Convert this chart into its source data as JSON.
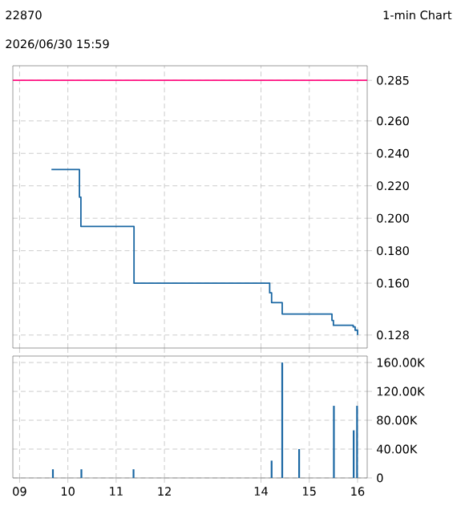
{
  "chart_data": [
    {
      "type": "step",
      "title": "22870",
      "subtitle": "1-min Chart",
      "annotations": [
        "2026/06/30 15:59"
      ],
      "series": [
        {
          "color": "#1a67a3",
          "x": [
            9.66,
            10.24,
            10.27,
            11.37,
            14.18,
            14.22,
            14.44,
            15.47,
            15.5,
            15.91,
            15.95,
            16.0
          ],
          "values": [
            0.23,
            0.213,
            0.195,
            0.16,
            0.154,
            0.148,
            0.141,
            0.137,
            0.134,
            0.133,
            0.131,
            0.128
          ]
        }
      ],
      "xlim": [
        8.86,
        16.2
      ],
      "xticks": [
        9,
        10,
        11,
        12,
        14,
        15,
        16
      ],
      "ylim": [
        0.12,
        0.294
      ],
      "yticks": [
        0.128,
        {
          "value": 0.16,
          "label": "0.160"
        },
        {
          "value": 0.18,
          "label": "0.180"
        },
        {
          "value": 0.2,
          "label": "0.200"
        },
        {
          "value": 0.22,
          "label": "0.220"
        },
        {
          "value": 0.24,
          "label": "0.240"
        },
        {
          "value": 0.26,
          "label": "0.260"
        },
        0.285
      ],
      "ref_lines": [
        {
          "axis": "y",
          "value": 0.285,
          "color": "#ff1080"
        }
      ],
      "grid": true,
      "tick_labels": "y"
    },
    {
      "type": "bar",
      "series": [
        {
          "color": "#1a67a3",
          "x": [
            9.69,
            10.28,
            11.36,
            14.22,
            14.44,
            14.79,
            15.51,
            15.92,
            15.99
          ],
          "values": [
            12000,
            12000,
            12000,
            24000,
            160000,
            40000,
            100000,
            66000,
            100000
          ]
        }
      ],
      "xlim": [
        8.86,
        16.2
      ],
      "xticks": [
        {
          "value": 9,
          "label": "09"
        },
        10,
        11,
        12,
        14,
        15,
        16
      ],
      "ylim": [
        0,
        169000
      ],
      "yticks": [
        0,
        {
          "value": 40000,
          "label": "40.00K"
        },
        {
          "value": 80000,
          "label": "80.00K"
        },
        {
          "value": 120000,
          "label": "120.00K"
        },
        {
          "value": 160000,
          "label": "160.00K"
        }
      ],
      "grid": true
    }
  ]
}
